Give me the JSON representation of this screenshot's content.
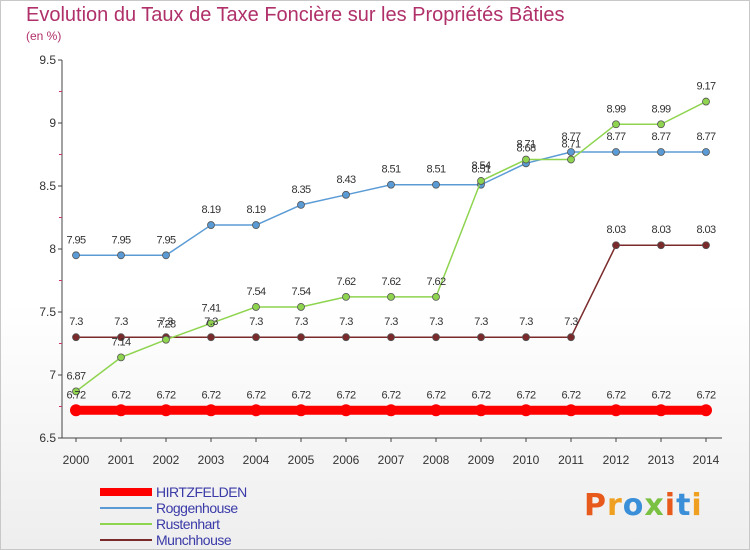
{
  "header": {
    "title": "Evolution du Taux de Taxe Foncière sur les Propriétés Bâties",
    "subtitle": "(en %)"
  },
  "logo": {
    "text": "Proxiti",
    "colors": [
      "#e85a1c",
      "#f0a020",
      "#3b8fd8",
      "#7ac143",
      "#e85a1c",
      "#3b8fd8",
      "#f0a020"
    ]
  },
  "chart_data": {
    "type": "line",
    "title": "Evolution du Taux de Taxe Foncière sur les Propriétés Bâties",
    "subtitle": "(en %)",
    "x": [
      2000,
      2001,
      2002,
      2003,
      2004,
      2005,
      2006,
      2007,
      2008,
      2009,
      2010,
      2011,
      2012,
      2013,
      2014
    ],
    "ylim": [
      6.5,
      9.5
    ],
    "yticks": [
      6.5,
      7,
      7.5,
      8,
      8.5,
      9,
      9.5
    ],
    "grid": false,
    "legend": "bottom-left",
    "series": [
      {
        "name": "HIRTZFELDEN",
        "color": "#ff0000",
        "labels": [
          "6.72",
          "6.72",
          "6.72",
          "6.72",
          "6.72",
          "6.72",
          "6.72",
          "6.72",
          "6.72",
          "6.72",
          "6.72",
          "6.72",
          "6.72",
          "6.72",
          "6.72"
        ],
        "values": [
          6.72,
          6.72,
          6.72,
          6.72,
          6.72,
          6.72,
          6.72,
          6.72,
          6.72,
          6.72,
          6.72,
          6.72,
          6.72,
          6.72,
          6.72
        ]
      },
      {
        "name": "Roggenhouse",
        "color": "#5b9bd5",
        "labels": [
          "7.95",
          "7.95",
          "7.95",
          "8.19",
          "8.19",
          "8.35",
          "8.43",
          "8.51",
          "8.51",
          "8.51",
          "8.68",
          "8.77",
          "8.77",
          "8.77",
          "8.77"
        ],
        "values": [
          7.95,
          7.95,
          7.95,
          8.19,
          8.19,
          8.35,
          8.43,
          8.51,
          8.51,
          8.51,
          8.68,
          8.77,
          8.77,
          8.77,
          8.77
        ]
      },
      {
        "name": "Rustenhart",
        "color": "#8ed44f",
        "labels": [
          "6.87",
          "7.14",
          "7.28",
          "7.41",
          "7.54",
          "7.54",
          "7.62",
          "7.62",
          "7.62",
          "8.54",
          "8.71",
          "8.71",
          "8.99",
          "8.99",
          "9.17"
        ],
        "values": [
          6.87,
          7.14,
          7.28,
          7.41,
          7.54,
          7.54,
          7.62,
          7.62,
          7.62,
          8.54,
          8.71,
          8.71,
          8.99,
          8.99,
          9.17
        ]
      },
      {
        "name": "Munchhouse",
        "color": "#7a2a2a",
        "labels": [
          "7.3",
          "7.3",
          "7.3",
          "7.3",
          "7.3",
          "7.3",
          "7.3",
          "7.3",
          "7.3",
          "7.3",
          "7.3",
          "7.3",
          "8.03",
          "8.03",
          "8.03"
        ],
        "values": [
          7.3,
          7.3,
          7.3,
          7.3,
          7.3,
          7.3,
          7.3,
          7.3,
          7.3,
          7.3,
          7.3,
          7.3,
          8.03,
          8.03,
          8.03
        ]
      }
    ]
  }
}
